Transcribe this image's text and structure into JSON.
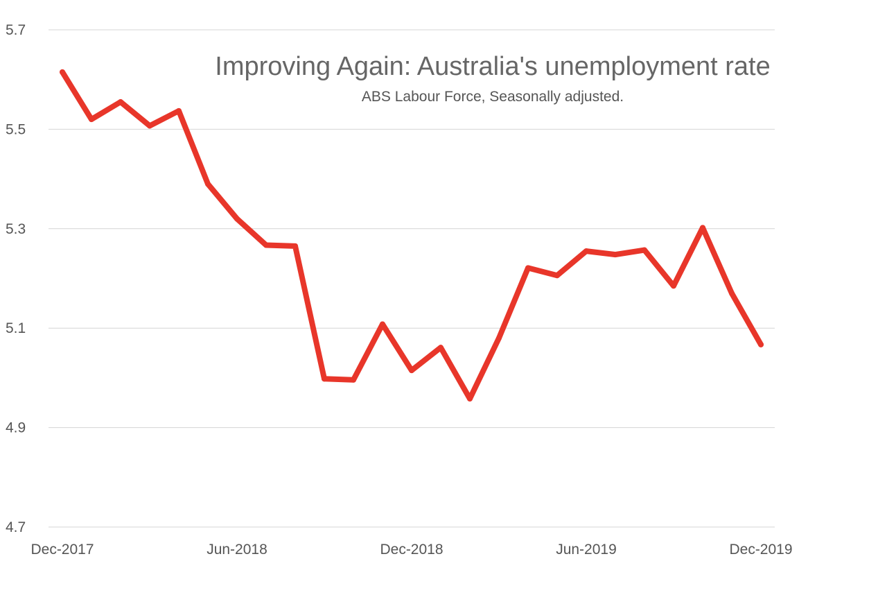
{
  "chart_data": {
    "type": "line",
    "title": "Improving Again: Australia's unemployment rate",
    "subtitle": "ABS Labour Force, Seasonally adjusted.",
    "xlabel": "",
    "ylabel": "",
    "x": [
      "Dec-2017",
      "Jan-2018",
      "Feb-2018",
      "Mar-2018",
      "Apr-2018",
      "May-2018",
      "Jun-2018",
      "Jul-2018",
      "Aug-2018",
      "Sep-2018",
      "Oct-2018",
      "Nov-2018",
      "Dec-2018",
      "Jan-2019",
      "Feb-2019",
      "Mar-2019",
      "Apr-2019",
      "May-2019",
      "Jun-2019",
      "Jul-2019",
      "Aug-2019",
      "Sep-2019",
      "Oct-2019",
      "Nov-2019",
      "Dec-2019"
    ],
    "x_tick_labels": [
      "Dec-2017",
      "Jun-2018",
      "Dec-2018",
      "Jun-2019",
      "Dec-2019"
    ],
    "y_ticks": [
      "4.7",
      "4.9",
      "5.1",
      "5.3",
      "5.5",
      "5.7"
    ],
    "ylim": [
      4.7,
      5.7
    ],
    "grid": true,
    "series": [
      {
        "color": "#e8362a",
        "values": [
          5.615,
          5.52,
          5.555,
          5.507,
          5.537,
          5.39,
          5.32,
          5.267,
          5.265,
          4.998,
          4.996,
          5.108,
          5.015,
          5.061,
          4.958,
          5.08,
          5.221,
          5.206,
          5.255,
          5.248,
          5.257,
          5.185,
          5.302,
          5.17,
          5.067
        ]
      }
    ]
  }
}
